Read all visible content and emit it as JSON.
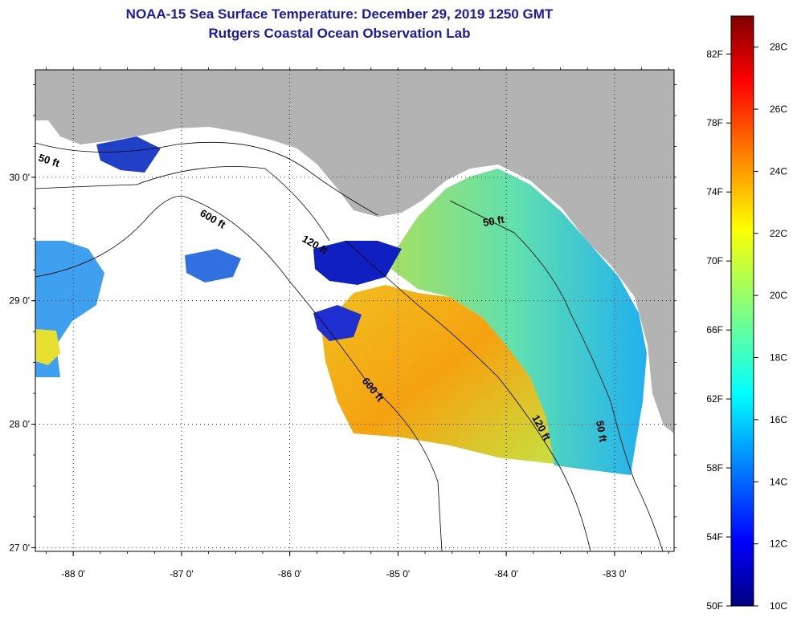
{
  "header": {
    "title_line1": "NOAA-15 Sea Surface Temperature:  December 29, 2019 1250 GMT",
    "title_line2": "Rutgers Coastal Ocean Observation Lab"
  },
  "map": {
    "lon_range": [
      -88.35,
      -82.45
    ],
    "lat_range": [
      26.97,
      30.87
    ],
    "x_ticks": [
      {
        "value": -88,
        "label": "-88 0'"
      },
      {
        "value": -87,
        "label": "-87 0'"
      },
      {
        "value": -86,
        "label": "-86 0'"
      },
      {
        "value": -85,
        "label": "-85 0'"
      },
      {
        "value": -84,
        "label": "-84 0'"
      },
      {
        "value": -83,
        "label": "-83 0'"
      }
    ],
    "y_ticks": [
      {
        "value": 30,
        "label": "30 0'"
      },
      {
        "value": 29,
        "label": "29 0'"
      },
      {
        "value": 28,
        "label": "28 0'"
      },
      {
        "value": 27,
        "label": "27 0'"
      }
    ],
    "grid": "dotted",
    "land_color": "#b3b3b3",
    "no_data_color": "#ffffff",
    "contour_labels": [
      {
        "text": "50 ft"
      },
      {
        "text": "600 ft"
      },
      {
        "text": "120 ft"
      },
      {
        "text": "50 ft"
      },
      {
        "text": "600 ft"
      },
      {
        "text": "120 ft"
      },
      {
        "text": "50 ft"
      }
    ]
  },
  "colorbar": {
    "range_c": [
      10,
      29
    ],
    "fahrenheit_labels": [
      "82F",
      "78F",
      "74F",
      "70F",
      "66F",
      "62F",
      "58F",
      "54F",
      "50F"
    ],
    "celsius_labels": [
      "28C",
      "26C",
      "24C",
      "22C",
      "20C",
      "18C",
      "16C",
      "14C",
      "12C",
      "10C"
    ]
  }
}
